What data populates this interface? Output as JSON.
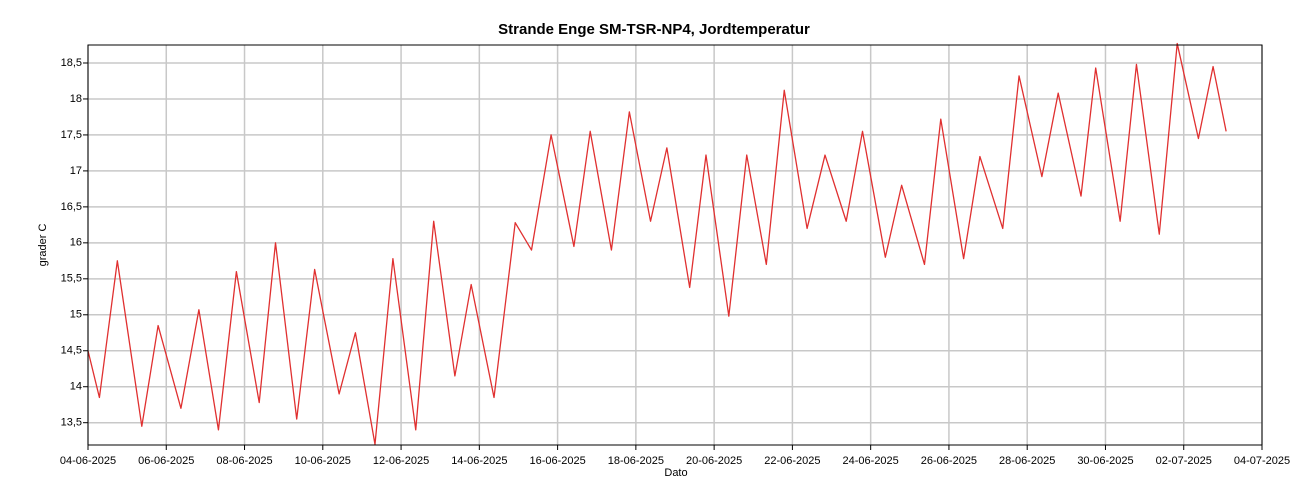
{
  "chart_data": {
    "type": "line",
    "title": "Strande Enge SM-TSR-NP4, Jordtemperatur",
    "x_label": "Dato",
    "y_label": "grader C",
    "grid": true,
    "xlim": [
      "2025-06-04T00:00",
      "2025-07-04T00:00"
    ],
    "ylim": [
      13.19,
      18.75
    ],
    "xticks": [
      {
        "value": "2025-06-04T00:00",
        "label": "04-06-2025"
      },
      {
        "value": "2025-06-06T00:00",
        "label": "06-06-2025"
      },
      {
        "value": "2025-06-08T00:00",
        "label": "08-06-2025"
      },
      {
        "value": "2025-06-10T00:00",
        "label": "10-06-2025"
      },
      {
        "value": "2025-06-12T00:00",
        "label": "12-06-2025"
      },
      {
        "value": "2025-06-14T00:00",
        "label": "14-06-2025"
      },
      {
        "value": "2025-06-16T00:00",
        "label": "16-06-2025"
      },
      {
        "value": "2025-06-18T00:00",
        "label": "18-06-2025"
      },
      {
        "value": "2025-06-20T00:00",
        "label": "20-06-2025"
      },
      {
        "value": "2025-06-22T00:00",
        "label": "22-06-2025"
      },
      {
        "value": "2025-06-24T00:00",
        "label": "24-06-2025"
      },
      {
        "value": "2025-06-26T00:00",
        "label": "26-06-2025"
      },
      {
        "value": "2025-06-28T00:00",
        "label": "28-06-2025"
      },
      {
        "value": "2025-06-30T00:00",
        "label": "30-06-2025"
      },
      {
        "value": "2025-07-02T00:00",
        "label": "02-07-2025"
      },
      {
        "value": "2025-07-04T00:00",
        "label": "04-07-2025"
      }
    ],
    "yticks": [
      {
        "value": 13.5,
        "label": "13,5"
      },
      14,
      {
        "value": 14.5,
        "label": "14,5"
      },
      15,
      {
        "value": 15.5,
        "label": "15,5"
      },
      16,
      {
        "value": 16.5,
        "label": "16,5"
      },
      17,
      {
        "value": 17.5,
        "label": "17,5"
      },
      18,
      {
        "value": 18.5,
        "label": "18,5"
      }
    ],
    "x": [
      "2025-06-04T00:00",
      "2025-06-04T07:00",
      "2025-06-04T18:00",
      "2025-06-05T09:00",
      "2025-06-05T19:00",
      "2025-06-06T09:00",
      "2025-06-06T20:00",
      "2025-06-07T08:00",
      "2025-06-07T19:00",
      "2025-06-08T09:00",
      "2025-06-08T19:00",
      "2025-06-09T08:00",
      "2025-06-09T19:00",
      "2025-06-10T10:00",
      "2025-06-10T20:00",
      "2025-06-11T08:00",
      "2025-06-11T19:00",
      "2025-06-12T09:00",
      "2025-06-12T20:00",
      "2025-06-13T09:00",
      "2025-06-13T19:00",
      "2025-06-14T09:00",
      "2025-06-14T22:00",
      "2025-06-15T08:00",
      "2025-06-15T20:00",
      "2025-06-16T10:00",
      "2025-06-16T20:00",
      "2025-06-17T09:00",
      "2025-06-17T20:00",
      "2025-06-18T09:00",
      "2025-06-18T19:00",
      "2025-06-19T09:00",
      "2025-06-19T19:00",
      "2025-06-20T09:00",
      "2025-06-20T20:00",
      "2025-06-21T08:00",
      "2025-06-21T19:00",
      "2025-06-22T09:00",
      "2025-06-22T20:00",
      "2025-06-23T09:00",
      "2025-06-23T19:00",
      "2025-06-24T09:00",
      "2025-06-24T19:00",
      "2025-06-25T09:00",
      "2025-06-25T19:00",
      "2025-06-26T09:00",
      "2025-06-26T19:00",
      "2025-06-27T09:00",
      "2025-06-27T19:00",
      "2025-06-28T09:00",
      "2025-06-28T19:00",
      "2025-06-29T09:00",
      "2025-06-29T18:00",
      "2025-06-30T09:00",
      "2025-06-30T19:00",
      "2025-07-01T09:00",
      "2025-07-01T20:00",
      "2025-07-02T09:00",
      "2025-07-02T18:00",
      "2025-07-03T02:00"
    ],
    "series": [
      {
        "color": "#e03030",
        "values": [
          14.5,
          13.85,
          15.75,
          13.45,
          14.85,
          13.7,
          15.07,
          13.4,
          15.6,
          13.78,
          16.0,
          13.55,
          15.63,
          13.9,
          14.75,
          13.2,
          15.78,
          13.4,
          16.3,
          14.15,
          15.42,
          13.85,
          16.28,
          15.9,
          17.5,
          15.95,
          17.55,
          15.9,
          17.82,
          16.3,
          17.32,
          15.38,
          17.22,
          14.98,
          17.22,
          15.7,
          18.12,
          16.2,
          17.22,
          16.3,
          17.55,
          15.8,
          16.8,
          15.7,
          17.72,
          15.78,
          17.2,
          16.2,
          18.32,
          16.92,
          18.08,
          16.65,
          18.43,
          16.3,
          18.48,
          16.12,
          18.77,
          17.45,
          18.45,
          17.55
        ]
      }
    ]
  }
}
